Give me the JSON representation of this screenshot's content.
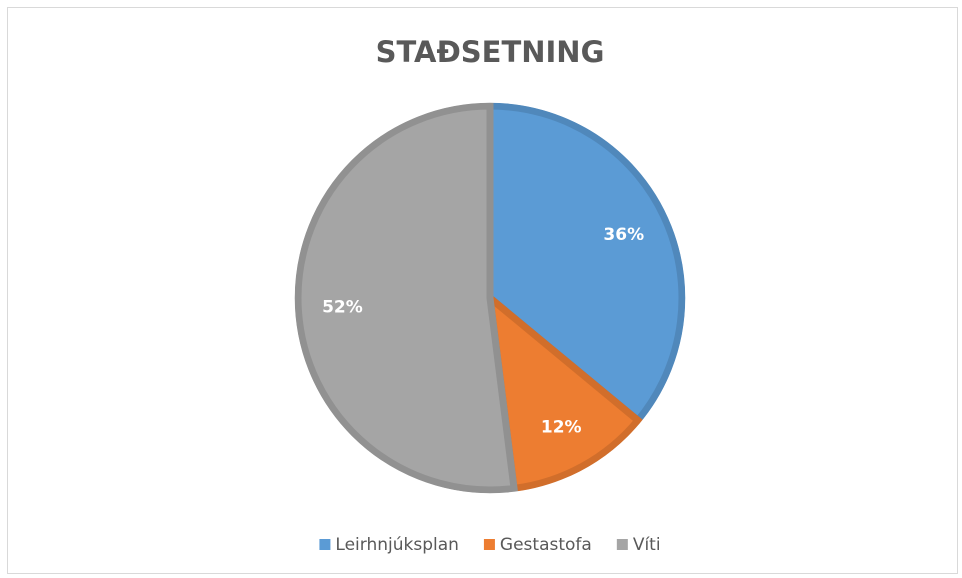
{
  "chart_data": {
    "type": "pie",
    "title": "STAÐSETNING",
    "categories": [
      "Leirhnjúksplan",
      "Gestastofa",
      "Víti"
    ],
    "values": [
      36,
      12,
      52
    ],
    "value_labels": [
      "36%",
      "12%",
      "52%"
    ],
    "colors": [
      "#5b9bd5",
      "#ed7d31",
      "#a5a5a5"
    ],
    "legend": "bottom"
  }
}
